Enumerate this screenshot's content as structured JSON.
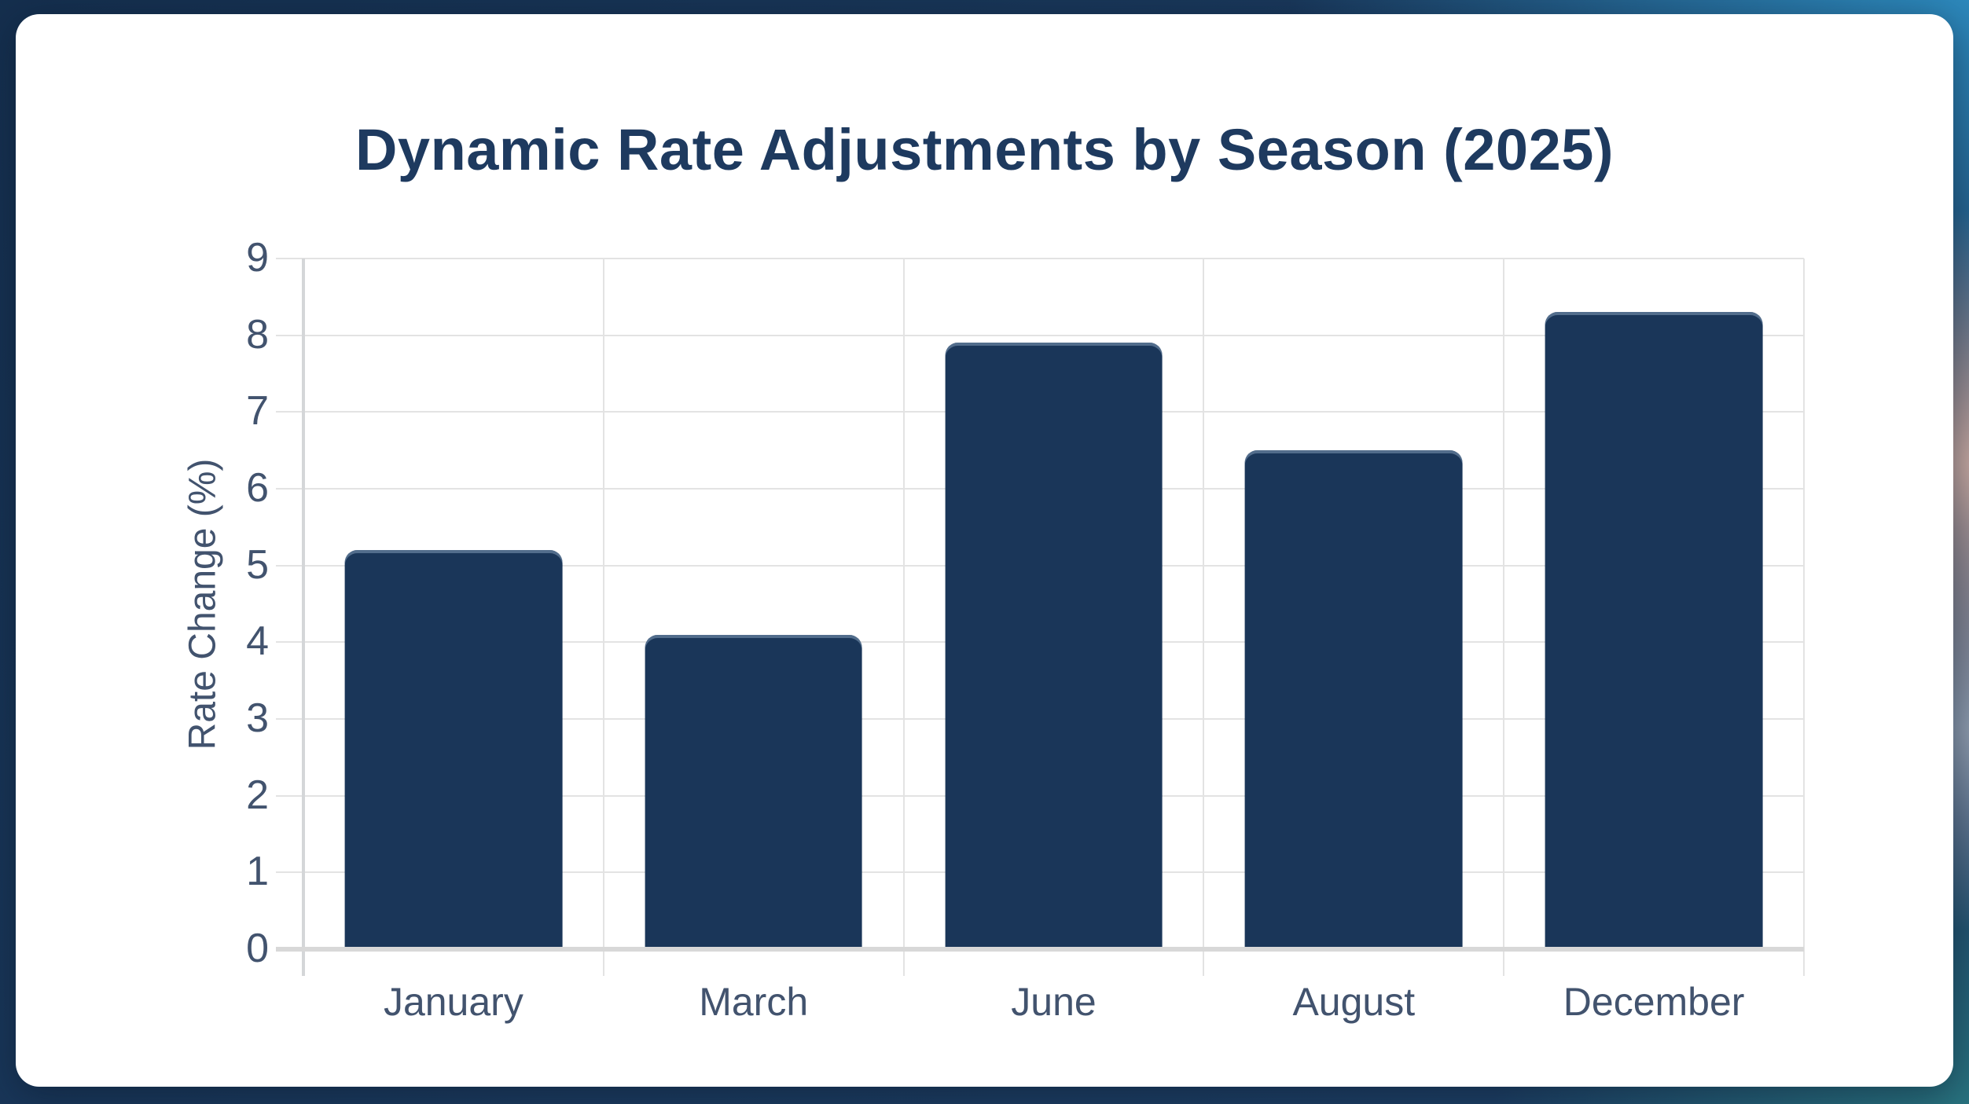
{
  "chart_data": {
    "type": "bar",
    "title": "Dynamic Rate Adjustments by Season (2025)",
    "categories": [
      "January",
      "March",
      "June",
      "August",
      "December"
    ],
    "values": [
      5.2,
      4.1,
      7.9,
      6.5,
      8.3
    ],
    "xlabel": "",
    "ylabel": "Rate Change (%)",
    "ylim": [
      0,
      9
    ],
    "y_ticks": [
      0,
      1,
      2,
      3,
      4,
      5,
      6,
      7,
      8,
      9
    ],
    "grid": true,
    "legend": false,
    "bar_width_fraction": 0.725
  },
  "colors": {
    "bar": "#1a3659",
    "title": "#1e3a5f",
    "tick": "#42536e",
    "grid": "#e3e3e3",
    "axis": "#d4d6d8",
    "card_bg": "#ffffff",
    "bg_navy": "#1b3a5e",
    "bg_sky": "#2f93c8",
    "bg_teal": "#2a7a82",
    "bg_peach": "#c9a9a0"
  }
}
